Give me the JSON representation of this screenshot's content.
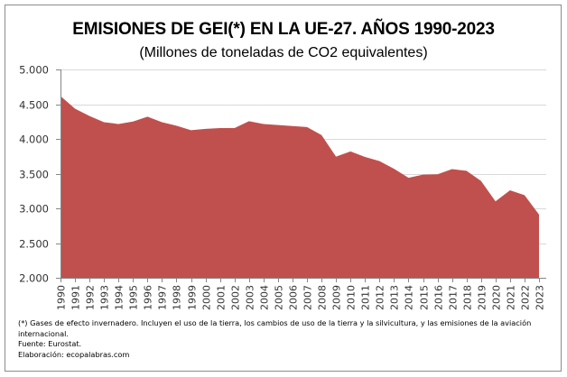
{
  "chart_data": {
    "type": "area",
    "title": "EMISIONES DE GEI(*) EN LA UE-27. AÑOS 1990-2023",
    "subtitle": "(Millones de toneladas de CO2 equivalentes)",
    "xlabel": "",
    "ylabel": "",
    "ylim": [
      2000,
      5000
    ],
    "yticks": [
      2000,
      2500,
      3000,
      3500,
      4000,
      4500,
      5000
    ],
    "ytick_labels": [
      "2.000",
      "2.500",
      "3.000",
      "3.500",
      "4.000",
      "4.500",
      "5.000"
    ],
    "grid": true,
    "legend": "none",
    "fill_color": "#C0504D",
    "x": [
      "1990",
      "1991",
      "1992",
      "1993",
      "1994",
      "1995",
      "1996",
      "1997",
      "1998",
      "1999",
      "2000",
      "2001",
      "2002",
      "2003",
      "2004",
      "2005",
      "2006",
      "2007",
      "2008",
      "2009",
      "2010",
      "2011",
      "2012",
      "2013",
      "2014",
      "2015",
      "2016",
      "2017",
      "2018",
      "2019",
      "2020",
      "2021",
      "2022",
      "2023"
    ],
    "series": [
      {
        "name": "Emisiones de GEI UE-27",
        "values": [
          4617,
          4435,
          4330,
          4240,
          4215,
          4250,
          4320,
          4240,
          4190,
          4125,
          4145,
          4155,
          4155,
          4255,
          4215,
          4200,
          4185,
          4170,
          4055,
          3745,
          3820,
          3740,
          3680,
          3570,
          3440,
          3485,
          3490,
          3565,
          3540,
          3395,
          3100,
          3260,
          3190,
          2910
        ]
      }
    ]
  },
  "notes": {
    "line1": "(*) Gases de efecto invernadero. Incluyen el uso de la tierra, los cambios de uso de la tierra y la silvicultura, y  las emisiones de la aviación",
    "line2": "internacional.",
    "source": "Fuente: Eurostat.",
    "credit": "Elaboración: ecopalabras.com"
  }
}
